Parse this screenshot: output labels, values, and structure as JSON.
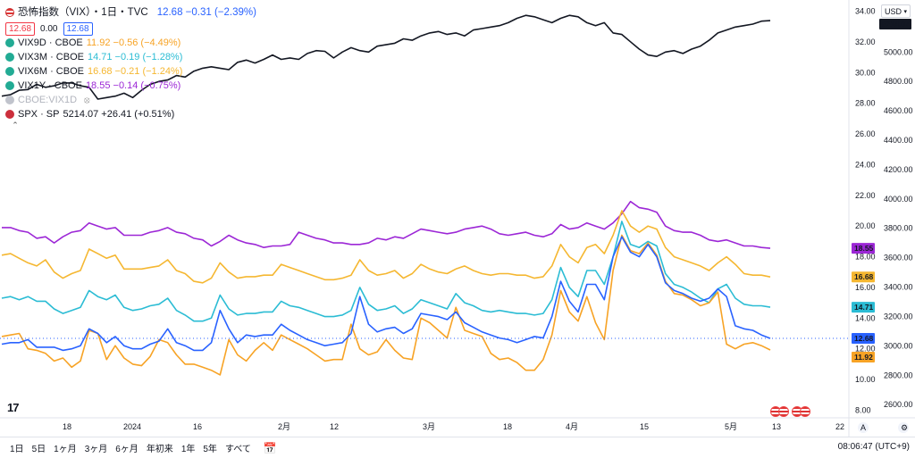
{
  "legend": {
    "title": "恐怖指数（VIX）・1日・TVC",
    "title_value": "12.68 −0.31 (−2.39%)",
    "boxes": [
      "12.68",
      "0.00",
      "12.68"
    ],
    "rows": [
      {
        "symbol": "VIX9D · CBOE",
        "value": "11.92 −0.56 (−4.49%)",
        "color": "#f7a325"
      },
      {
        "symbol": "VIX3M · CBOE",
        "value": "14.71 −0.19 (−1.28%)",
        "color": "#2bbcd4"
      },
      {
        "symbol": "VIX6M · CBOE",
        "value": "16.68 −0.21 (−1.24%)",
        "color": "#f5b731"
      },
      {
        "symbol": "VIX1Y · CBOE",
        "value": "18.55 −0.14 (−0.75%)",
        "color": "#9c27d6"
      },
      {
        "symbol": "CBOE:VIX1D",
        "value": "",
        "color": "#c0c3cc"
      },
      {
        "symbol": "SPX · SP",
        "value": "5214.07 +26.41 (+0.51%)",
        "color": "#131722"
      }
    ]
  },
  "currency": "USD",
  "bottom_bar": {
    "ranges": [
      "1日",
      "5日",
      "1ヶ月",
      "3ヶ月",
      "6ヶ月",
      "年初来",
      "1年",
      "5年",
      "すべて"
    ],
    "clock": "08:06:47 (UTC+9)"
  },
  "x_ticks": [
    "18",
    "2024",
    "16",
    "2月",
    "12",
    "3月",
    "18",
    "4月",
    "15",
    "5月",
    "13",
    "22"
  ],
  "chart_data": {
    "type": "line",
    "x_unit": "trading days from mid-December 2023 to mid-May 2024",
    "left_axis": {
      "ticks": [
        "34.00",
        "32.00",
        "30.00",
        "28.00",
        "26.00",
        "24.00",
        "22.00",
        "20.00",
        "18.00",
        "16.00",
        "14.00",
        "12.00",
        "10.00",
        "8.00"
      ],
      "range": [
        7.5,
        34.5
      ]
    },
    "right_axis": {
      "ticks": [
        "5000.00",
        "4800.00",
        "4600.00",
        "4400.00",
        "4200.00",
        "4000.00",
        "3800.00",
        "3600.00",
        "3400.00",
        "3200.00",
        "3000.00",
        "2800.00",
        "2600.00"
      ],
      "range": [
        2510,
        5330
      ]
    },
    "price_labels": [
      {
        "text": "5214.07",
        "series": "SPX",
        "color": "#131722"
      },
      {
        "text": "18.55",
        "series": "VIX1Y",
        "color": "#9c27d6"
      },
      {
        "text": "16.68",
        "series": "VIX6M",
        "color": "#f5b731"
      },
      {
        "text": "14.71",
        "series": "VIX3M",
        "color": "#2bbcd4"
      },
      {
        "text": "12.68",
        "series": "VIX",
        "color": "#2962ff"
      },
      {
        "text": "11.92",
        "series": "VIX9D",
        "color": "#f7a325"
      }
    ],
    "series": [
      {
        "name": "SPX",
        "axis": "right",
        "color": "#131722",
        "values": [
          4700,
          4710,
          4740,
          4745,
          4780,
          4760,
          4770,
          4790,
          4790,
          4770,
          4760,
          4680,
          4690,
          4700,
          4720,
          4690,
          4740,
          4780,
          4800,
          4810,
          4840,
          4830,
          4870,
          4890,
          4900,
          4890,
          4880,
          4930,
          4945,
          4925,
          4950,
          4980,
          4950,
          4960,
          4950,
          4990,
          5010,
          5005,
          4960,
          5000,
          5030,
          5010,
          5000,
          5040,
          5050,
          5060,
          5090,
          5080,
          5110,
          5130,
          5140,
          5120,
          5130,
          5110,
          5150,
          5160,
          5170,
          5180,
          5200,
          5230,
          5250,
          5240,
          5220,
          5200,
          5230,
          5250,
          5240,
          5200,
          5180,
          5200,
          5130,
          5120,
          5070,
          5020,
          4980,
          4970,
          5000,
          5010,
          4990,
          5020,
          5040,
          5080,
          5130,
          5150,
          5170,
          5180,
          5190,
          5210,
          5214
        ]
      },
      {
        "name": "VIX1Y",
        "axis": "left",
        "color": "#9c27d6",
        "values": [
          19.9,
          19.9,
          19.7,
          19.6,
          19.2,
          19.3,
          18.9,
          19.3,
          19.6,
          19.7,
          20.2,
          20.0,
          19.8,
          19.9,
          19.4,
          19.4,
          19.4,
          19.6,
          19.7,
          19.9,
          19.6,
          19.5,
          19.2,
          19.1,
          18.7,
          19.0,
          19.4,
          19.1,
          18.9,
          18.8,
          18.6,
          18.7,
          18.7,
          18.8,
          19.6,
          19.4,
          19.2,
          19.1,
          18.9,
          18.9,
          18.8,
          18.8,
          18.9,
          19.2,
          19.1,
          19.3,
          19.2,
          19.5,
          19.8,
          19.7,
          19.6,
          19.5,
          19.6,
          19.8,
          19.9,
          20.0,
          19.8,
          19.5,
          19.4,
          19.5,
          19.6,
          19.4,
          19.3,
          19.5,
          20.1,
          19.8,
          19.9,
          20.2,
          20.0,
          19.8,
          20.2,
          20.8,
          21.6,
          21.2,
          21.1,
          20.9,
          20.0,
          19.7,
          19.6,
          19.6,
          19.4,
          19.1,
          19.0,
          19.1,
          18.9,
          18.7,
          18.7,
          18.6,
          18.55
        ]
      },
      {
        "name": "VIX6M",
        "axis": "left",
        "color": "#f5b731",
        "values": [
          18.1,
          18.2,
          17.9,
          17.6,
          17.4,
          17.8,
          17.0,
          16.6,
          16.9,
          17.1,
          18.5,
          18.2,
          17.9,
          18.1,
          17.2,
          17.2,
          17.2,
          17.3,
          17.4,
          17.8,
          17.1,
          16.9,
          16.4,
          16.3,
          16.6,
          17.6,
          17.0,
          16.6,
          16.7,
          16.7,
          16.8,
          16.8,
          17.5,
          17.3,
          17.1,
          16.9,
          16.7,
          16.5,
          16.5,
          16.6,
          16.8,
          17.8,
          17.1,
          16.8,
          16.9,
          17.1,
          16.6,
          16.9,
          17.5,
          17.2,
          17.0,
          16.9,
          17.2,
          17.4,
          17.1,
          16.9,
          16.8,
          16.9,
          16.9,
          16.8,
          16.8,
          16.6,
          16.7,
          17.4,
          18.8,
          18.0,
          17.6,
          18.6,
          18.8,
          18.2,
          19.4,
          21.0,
          20.0,
          19.6,
          20.0,
          19.8,
          18.6,
          18.0,
          17.8,
          17.6,
          17.4,
          17.1,
          17.6,
          18.0,
          17.5,
          16.9,
          16.8,
          16.8,
          16.68
        ]
      },
      {
        "name": "VIX3M",
        "axis": "left",
        "color": "#2bbcd4",
        "values": [
          15.3,
          15.4,
          15.2,
          15.4,
          15.1,
          15.1,
          14.6,
          14.3,
          14.5,
          14.7,
          15.8,
          15.4,
          15.2,
          15.5,
          14.7,
          14.5,
          14.6,
          14.8,
          14.9,
          15.3,
          14.5,
          14.2,
          13.8,
          13.8,
          14.0,
          15.5,
          14.6,
          14.2,
          14.3,
          14.3,
          14.4,
          14.4,
          15.1,
          14.8,
          14.7,
          14.5,
          14.3,
          14.1,
          14.1,
          14.2,
          14.5,
          16.0,
          14.9,
          14.5,
          14.6,
          14.8,
          14.3,
          14.6,
          15.2,
          15.0,
          14.8,
          14.6,
          15.6,
          15.0,
          14.8,
          14.5,
          14.4,
          14.5,
          14.4,
          14.3,
          14.3,
          14.2,
          14.3,
          15.2,
          17.3,
          16.0,
          15.4,
          17.1,
          17.1,
          16.2,
          18.0,
          20.3,
          18.8,
          18.6,
          19.0,
          18.7,
          16.9,
          16.2,
          16.0,
          15.7,
          15.3,
          15.0,
          15.9,
          16.2,
          15.3,
          14.9,
          14.8,
          14.8,
          14.71
        ]
      },
      {
        "name": "VIX",
        "axis": "left",
        "color": "#2962ff",
        "values": [
          12.3,
          12.4,
          12.4,
          12.6,
          12.1,
          12.1,
          12.1,
          11.9,
          12.0,
          12.2,
          13.3,
          13.0,
          12.4,
          12.8,
          12.2,
          12.0,
          12.0,
          12.3,
          12.5,
          13.3,
          12.4,
          12.2,
          11.9,
          11.9,
          12.4,
          14.5,
          13.3,
          12.4,
          12.9,
          12.8,
          12.9,
          12.9,
          13.6,
          13.2,
          12.9,
          12.6,
          12.4,
          12.2,
          12.3,
          12.4,
          13.0,
          15.4,
          13.6,
          13.1,
          13.3,
          13.4,
          13.0,
          13.3,
          14.3,
          14.2,
          14.1,
          13.9,
          14.4,
          13.7,
          13.4,
          13.1,
          12.9,
          12.7,
          12.6,
          12.4,
          12.6,
          12.8,
          12.7,
          14.1,
          16.4,
          15.1,
          14.4,
          16.2,
          16.2,
          15.2,
          18.0,
          19.3,
          18.3,
          18.0,
          18.8,
          18.0,
          16.3,
          15.8,
          15.6,
          15.3,
          15.1,
          15.3,
          15.9,
          15.4,
          13.5,
          13.3,
          13.2,
          12.9,
          12.68
        ]
      },
      {
        "name": "VIX9D",
        "axis": "left",
        "color": "#f7a325",
        "values": [
          12.8,
          12.9,
          13.0,
          12.0,
          11.9,
          11.7,
          11.2,
          11.4,
          10.8,
          11.2,
          13.2,
          13.0,
          11.3,
          12.2,
          11.4,
          11.0,
          10.9,
          11.5,
          12.6,
          12.4,
          11.6,
          11.0,
          11.0,
          10.8,
          10.6,
          10.3,
          12.6,
          11.6,
          11.2,
          11.9,
          12.4,
          11.9,
          12.9,
          12.6,
          12.3,
          12.0,
          11.6,
          11.2,
          11.3,
          11.3,
          13.6,
          12.0,
          11.6,
          11.8,
          12.6,
          11.9,
          11.4,
          11.3,
          14.0,
          13.7,
          13.2,
          12.7,
          14.7,
          13.2,
          13.0,
          12.8,
          11.7,
          11.3,
          11.4,
          11.1,
          10.6,
          10.6,
          11.3,
          12.9,
          15.8,
          14.4,
          13.8,
          15.4,
          13.7,
          12.6,
          17.1,
          19.4,
          18.4,
          18.2,
          18.9,
          18.1,
          16.4,
          15.6,
          15.5,
          15.2,
          14.8,
          15.0,
          15.7,
          12.3,
          12.0,
          12.3,
          12.4,
          12.2,
          11.92
        ]
      }
    ]
  }
}
